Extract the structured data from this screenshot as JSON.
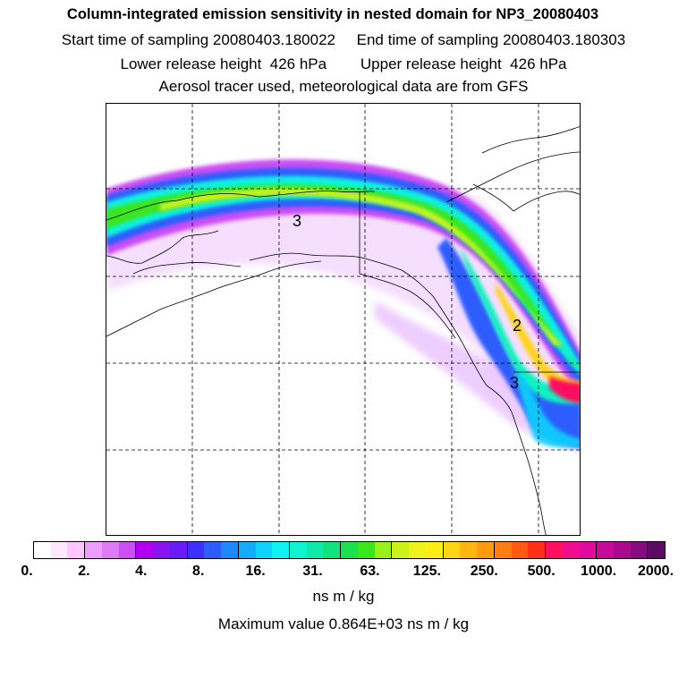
{
  "header": {
    "title": "Column-integrated emission sensitivity in nested domain for NP3_20080403",
    "sampling": "Start time of sampling 20080403.180022     End time of sampling 20080403.180303",
    "release": "Lower release height  426 hPa        Upper release height  426 hPa",
    "tracer": "Aerosol tracer used, meteorological data are from GFS"
  },
  "map": {
    "labels": [
      "3",
      "2",
      "3"
    ]
  },
  "colorbar": {
    "tick_labels": [
      "0.",
      "2.",
      "4.",
      "8.",
      "16.",
      "31.",
      "63.",
      "125.",
      "250.",
      "500.",
      "1000.",
      "2000."
    ],
    "units": "ns m / kg",
    "colors": [
      "#ffffff",
      "#ffe8ff",
      "#ffc6ff",
      "#ee9cff",
      "#dd7cf5",
      "#cc4ef5",
      "#b000ee",
      "#8a14f0",
      "#6a1cf7",
      "#3b30ff",
      "#2f5dff",
      "#1f87ff",
      "#16aaff",
      "#11d2ff",
      "#10f2f2",
      "#10f2d0",
      "#10e9a8",
      "#12e27e",
      "#1ce04e",
      "#3ae61c",
      "#9af01a",
      "#ccf21a",
      "#eef21a",
      "#ffee16",
      "#ffd414",
      "#ffb612",
      "#ff9a12",
      "#ff7d12",
      "#ff5a14",
      "#ff3018",
      "#ff1060",
      "#f00c90",
      "#e00a9c",
      "#c80a98",
      "#aa0a8c",
      "#880a80",
      "#5c0b5e"
    ]
  },
  "footer": {
    "max_value": "Maximum value  0.864E+03 ns m / kg"
  }
}
